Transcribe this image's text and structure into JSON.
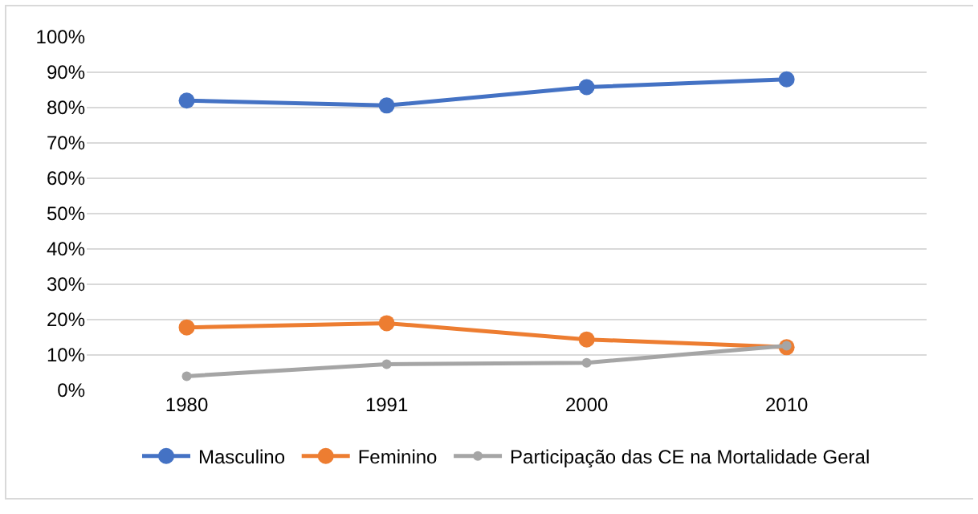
{
  "chart_data": {
    "type": "line",
    "categories": [
      "1980",
      "1991",
      "2000",
      "2010"
    ],
    "series": [
      {
        "name": "Masculino",
        "color": "#4472c4",
        "values": [
          82,
          80.6,
          85.8,
          88
        ]
      },
      {
        "name": "Feminino",
        "color": "#ed7d31",
        "values": [
          17.8,
          19,
          14.4,
          12.2
        ]
      },
      {
        "name": "Participação das CE na Mortalidade Geral",
        "color": "#a5a5a5",
        "values": [
          4,
          7.4,
          7.8,
          12.6
        ]
      }
    ],
    "ylim": [
      0,
      100
    ],
    "yticks": [
      {
        "value": 0,
        "label": "0%"
      },
      {
        "value": 10,
        "label": "10%"
      },
      {
        "value": 20,
        "label": "20%"
      },
      {
        "value": 30,
        "label": "30%"
      },
      {
        "value": 40,
        "label": "40%"
      },
      {
        "value": 50,
        "label": "50%"
      },
      {
        "value": 60,
        "label": "60%"
      },
      {
        "value": 70,
        "label": "70%"
      },
      {
        "value": 80,
        "label": "80%"
      },
      {
        "value": 90,
        "label": "90%"
      },
      {
        "value": 100,
        "label": "100%"
      }
    ],
    "grid": "y",
    "legend": "bottom",
    "marker": "circle",
    "line_style": "solid"
  }
}
